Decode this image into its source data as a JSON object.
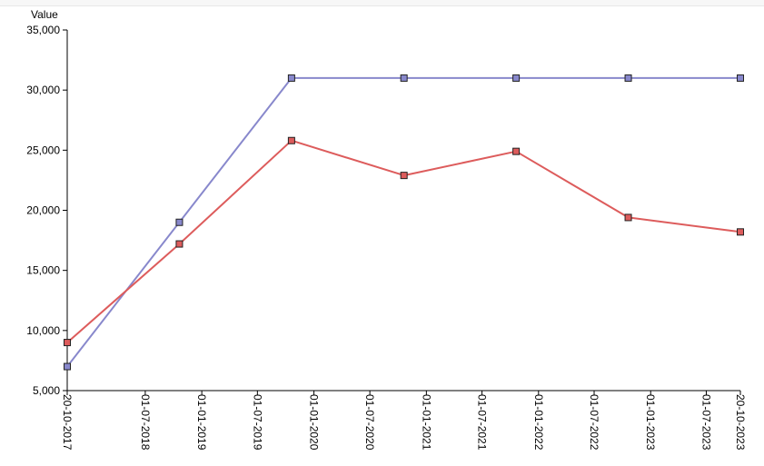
{
  "chart_data": {
    "type": "line",
    "title": "",
    "xlabel": "",
    "ylabel": "Value",
    "ylim": [
      5000,
      35000
    ],
    "yticks": [
      "5,000",
      "10,000",
      "15,000",
      "20,000",
      "25,000",
      "30,000",
      "35,000"
    ],
    "ytick_values": [
      5000,
      10000,
      15000,
      20000,
      25000,
      30000,
      35000
    ],
    "xlim": [
      "2017-10-20",
      "2023-10-20"
    ],
    "xticks": [
      "20-10-2017",
      "01-07-2018",
      "01-01-2019",
      "01-07-2019",
      "01-01-2020",
      "01-07-2020",
      "01-01-2021",
      "01-07-2021",
      "01-01-2022",
      "01-07-2022",
      "01-01-2023",
      "01-07-2023",
      "20-10-2023"
    ],
    "xtick_dates": [
      "2017-10-20",
      "2018-07-01",
      "2019-01-01",
      "2019-07-01",
      "2020-01-01",
      "2020-07-01",
      "2021-01-01",
      "2021-07-01",
      "2022-01-01",
      "2022-07-01",
      "2023-01-01",
      "2023-07-01",
      "2023-10-20"
    ],
    "grid": false,
    "legend": "none",
    "x": [
      "2017-10-20",
      "2018-10-20",
      "2019-10-20",
      "2020-10-20",
      "2021-10-20",
      "2022-10-20",
      "2023-10-20"
    ],
    "series": [
      {
        "color": "#8888cc",
        "values": [
          7000,
          19000,
          31000,
          31000,
          31000,
          31000,
          31000
        ]
      },
      {
        "color": "#dd5c5c",
        "values": [
          9000,
          17200,
          25800,
          22900,
          24900,
          19400,
          18200
        ]
      }
    ]
  }
}
